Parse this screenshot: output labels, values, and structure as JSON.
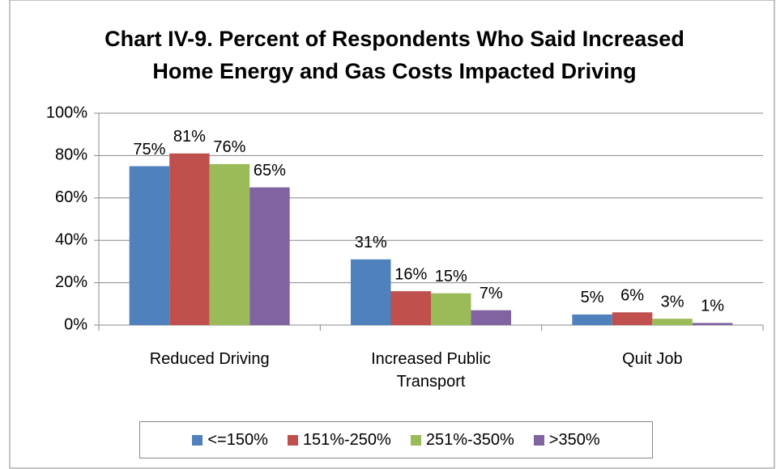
{
  "chart_data": {
    "type": "bar",
    "title": [
      "Chart IV-9. Percent of Respondents Who Said Increased",
      "Home Energy and Gas Costs Impacted Driving"
    ],
    "categories": [
      "Reduced Driving",
      "Increased Public Transport",
      "Quit Job"
    ],
    "series": [
      {
        "name": "<=150%",
        "color": "#4f81bd",
        "values": [
          75,
          31,
          5
        ],
        "value_labels": [
          "75%",
          "31%",
          "5%"
        ]
      },
      {
        "name": "151%-250%",
        "color": "#c0504d",
        "values": [
          81,
          16,
          6
        ],
        "value_labels": [
          "81%",
          "16%",
          "6%"
        ]
      },
      {
        "name": "251%-350%",
        "color": "#9bbb59",
        "values": [
          76,
          15,
          3
        ],
        "value_labels": [
          "76%",
          "15%",
          "3%"
        ]
      },
      {
        "name": ">350%",
        "color": "#8064a2",
        "values": [
          65,
          7,
          1
        ],
        "value_labels": [
          "65%",
          "7%",
          "1%"
        ]
      }
    ],
    "ylim": [
      0,
      100
    ],
    "yticks": [
      {
        "value": 0,
        "label": "0%"
      },
      {
        "value": 20,
        "label": "20%"
      },
      {
        "value": 40,
        "label": "40%"
      },
      {
        "value": 60,
        "label": "60%"
      },
      {
        "value": 80,
        "label": "80%"
      },
      {
        "value": 100,
        "label": "100%"
      }
    ],
    "grid": true,
    "legend": "bottom"
  }
}
